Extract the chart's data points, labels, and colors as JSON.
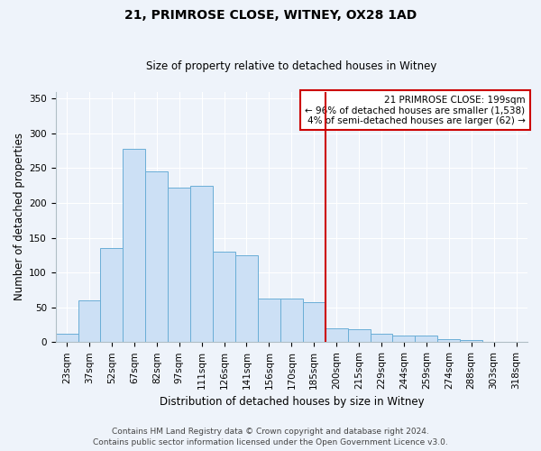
{
  "title": "21, PRIMROSE CLOSE, WITNEY, OX28 1AD",
  "subtitle": "Size of property relative to detached houses in Witney",
  "xlabel": "Distribution of detached houses by size in Witney",
  "ylabel": "Number of detached properties",
  "bar_labels": [
    "23sqm",
    "37sqm",
    "52sqm",
    "67sqm",
    "82sqm",
    "97sqm",
    "111sqm",
    "126sqm",
    "141sqm",
    "156sqm",
    "170sqm",
    "185sqm",
    "200sqm",
    "215sqm",
    "229sqm",
    "244sqm",
    "259sqm",
    "274sqm",
    "288sqm",
    "303sqm",
    "318sqm"
  ],
  "bar_values": [
    12,
    60,
    135,
    278,
    245,
    222,
    225,
    130,
    125,
    62,
    62,
    58,
    20,
    18,
    12,
    10,
    10,
    4,
    3,
    1,
    0
  ],
  "bar_color": "#cce0f5",
  "bar_edge_color": "#6aaed6",
  "vline_index": 12,
  "vline_color": "#cc0000",
  "annotation_title": "21 PRIMROSE CLOSE: 199sqm",
  "annotation_line1": "← 96% of detached houses are smaller (1,538)",
  "annotation_line2": "4% of semi-detached houses are larger (62) →",
  "annotation_box_facecolor": "#ffffff",
  "annotation_box_edgecolor": "#cc0000",
  "ylim": [
    0,
    360
  ],
  "yticks": [
    0,
    50,
    100,
    150,
    200,
    250,
    300,
    350
  ],
  "footer1": "Contains HM Land Registry data © Crown copyright and database right 2024.",
  "footer2": "Contains public sector information licensed under the Open Government Licence v3.0.",
  "bg_color": "#eef3fa",
  "grid_color": "#ffffff",
  "title_fontsize": 10,
  "subtitle_fontsize": 8.5,
  "axis_label_fontsize": 8.5,
  "tick_fontsize": 7.5,
  "footer_fontsize": 6.5
}
